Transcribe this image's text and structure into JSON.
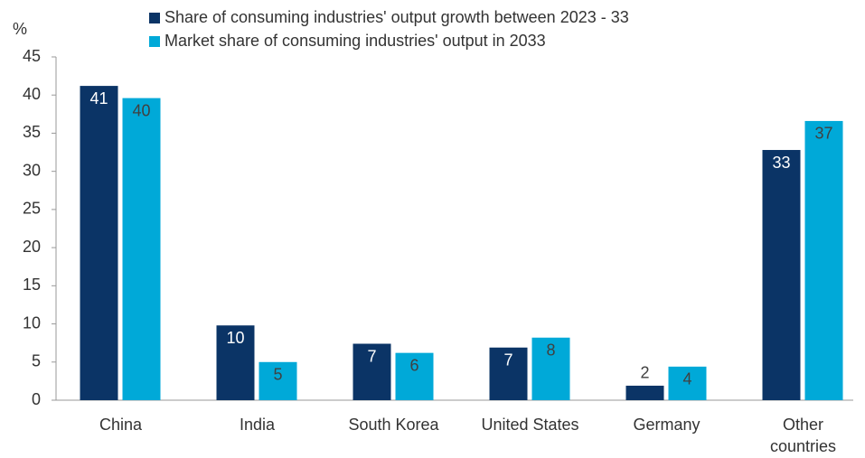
{
  "chart_data": {
    "type": "bar",
    "y_label": "%",
    "categories": [
      "China",
      "India",
      "South Korea",
      "United States",
      "Germany",
      "Other\ncountries"
    ],
    "series": [
      {
        "name": "Share of consuming industries' output growth between 2023 - 33",
        "color": "#0b3466",
        "values": [
          41.2,
          9.8,
          7.4,
          6.9,
          1.9,
          32.8
        ],
        "value_labels": [
          "41",
          "10",
          "7",
          "7",
          "2",
          "33"
        ]
      },
      {
        "name": "Market share of consuming industries' output in 2033",
        "color": "#00a9d8",
        "values": [
          39.6,
          5.0,
          6.2,
          8.2,
          4.4,
          36.6
        ],
        "value_labels": [
          "40",
          "5",
          "6",
          "8",
          "4",
          "37"
        ]
      }
    ],
    "ylim": [
      0,
      45
    ],
    "yticks": [
      0,
      5,
      10,
      15,
      20,
      25,
      30,
      35,
      40,
      45
    ],
    "grid": false
  }
}
